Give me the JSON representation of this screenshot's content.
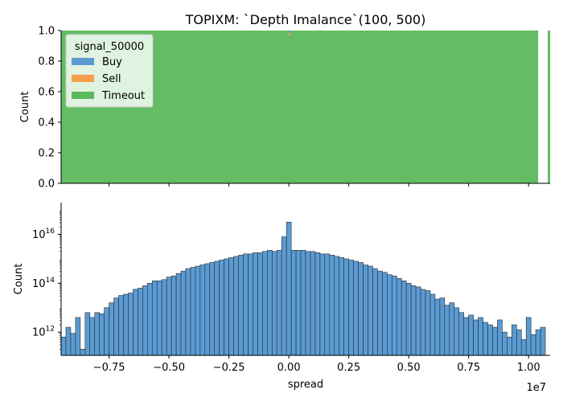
{
  "chart_data": [
    {
      "type": "bar",
      "title": "TOPIXM: `Depth Imalance`(100, 500)",
      "xlabel": "",
      "ylabel": "Count",
      "ylim": [
        0,
        1
      ],
      "yticks": [
        "0.0",
        "0.2",
        "0.4",
        "0.6",
        "0.8",
        "1.0"
      ],
      "grid": false,
      "legend": {
        "title": "signal_50000",
        "placement": "upper-left",
        "entries": [
          {
            "label": "Buy",
            "color": "#5a9bd4"
          },
          {
            "label": "Sell",
            "color": "#f5a04a"
          },
          {
            "label": "Timeout",
            "color": "#5cb85c"
          }
        ]
      },
      "description_values": {
        "x_range_e7": [
          -0.95,
          1.09
        ],
        "segments": [
          {
            "series": "Timeout",
            "x0": -0.95,
            "x1": 1.04,
            "from": 0.0,
            "to": 1.0
          },
          {
            "series": "Timeout",
            "x0": 1.08,
            "x1": 1.09,
            "from": 0.0,
            "to": 1.0
          },
          {
            "series": "Buy",
            "x0": -0.002,
            "x1": 0.006,
            "from": 0.985,
            "to": 1.0
          },
          {
            "series": "Sell",
            "x0": -0.002,
            "x1": 0.006,
            "from": 0.968,
            "to": 0.985
          }
        ]
      }
    },
    {
      "type": "bar",
      "xlabel": "spread",
      "ylabel": "Count",
      "yscale": "log",
      "ylim_exp": [
        11.05,
        17.3
      ],
      "ytick_labels": [
        {
          "base": "10",
          "exp": "12",
          "value": 12
        },
        {
          "base": "10",
          "exp": "14",
          "value": 14
        },
        {
          "base": "10",
          "exp": "16",
          "value": 16
        }
      ],
      "xlim": [
        -0.95,
        1.09
      ],
      "xticks": [
        "-0.75",
        "-0.50",
        "-0.25",
        "0.00",
        "0.25",
        "0.50",
        "0.75",
        "1.00"
      ],
      "xtick_values": [
        -0.75,
        -0.5,
        -0.25,
        0.0,
        0.25,
        0.5,
        0.75,
        1.0
      ],
      "offset_label": "1e7",
      "bar_color": "#5a9bd4",
      "bin_width": 0.02,
      "bin_start": -0.95,
      "log10_values": [
        11.8,
        12.2,
        11.95,
        12.6,
        11.3,
        12.8,
        12.6,
        12.8,
        12.75,
        13.0,
        13.2,
        13.4,
        13.5,
        13.55,
        13.6,
        13.75,
        13.8,
        13.9,
        14.0,
        14.1,
        14.1,
        14.15,
        14.25,
        14.3,
        14.4,
        14.5,
        14.6,
        14.65,
        14.7,
        14.75,
        14.8,
        14.85,
        14.9,
        14.95,
        15.0,
        15.05,
        15.1,
        15.15,
        15.2,
        15.2,
        15.25,
        15.25,
        15.3,
        15.35,
        15.3,
        15.35,
        15.9,
        16.5,
        15.35,
        15.35,
        15.35,
        15.3,
        15.3,
        15.25,
        15.2,
        15.2,
        15.15,
        15.1,
        15.05,
        15.0,
        14.95,
        14.9,
        14.85,
        14.75,
        14.7,
        14.6,
        14.5,
        14.45,
        14.35,
        14.3,
        14.2,
        14.1,
        14.0,
        13.9,
        13.85,
        13.75,
        13.7,
        13.55,
        13.35,
        13.4,
        13.1,
        13.2,
        13.0,
        12.8,
        12.6,
        12.7,
        12.5,
        12.6,
        12.4,
        12.3,
        12.2,
        12.5,
        12.0,
        11.8,
        12.3,
        12.1,
        11.7,
        12.6,
        11.9,
        12.1,
        12.2
      ]
    }
  ]
}
